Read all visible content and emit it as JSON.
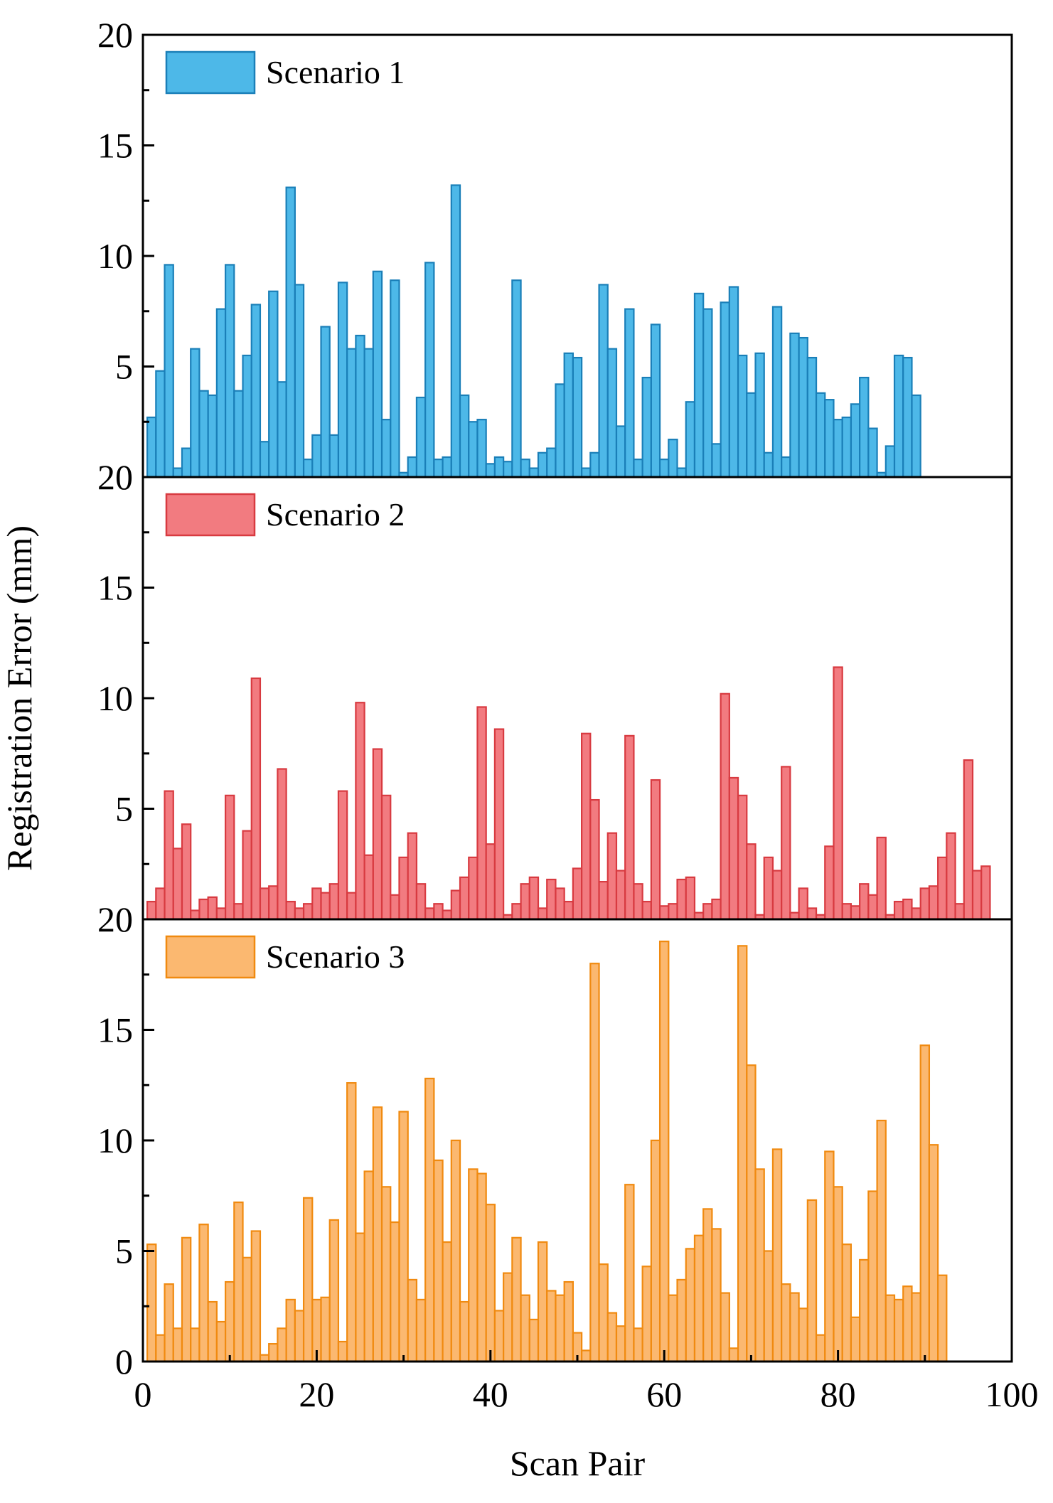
{
  "chart_data": {
    "type": "bar",
    "xlabel": "Scan Pair",
    "ylabel": "Registration Error (mm)",
    "xlim": [
      0,
      100
    ],
    "ylim": [
      0,
      20
    ],
    "x_ticks": [
      "0",
      "20",
      "40",
      "60",
      "80",
      "100"
    ],
    "y_ticks": [
      "0",
      "5",
      "10",
      "15",
      "20"
    ],
    "panel_top_tick": "20",
    "legend_position": "top-left",
    "series": [
      {
        "name": "Scenario 1",
        "fill": "#4db8e8",
        "stroke": "#1a7fb8",
        "values": [
          2.7,
          4.8,
          9.6,
          0.4,
          1.3,
          5.8,
          3.9,
          3.7,
          7.6,
          9.6,
          3.9,
          5.5,
          7.8,
          1.6,
          8.4,
          4.3,
          13.1,
          8.7,
          0.8,
          1.9,
          6.8,
          1.9,
          8.8,
          5.8,
          6.4,
          5.8,
          9.3,
          2.6,
          8.9,
          0.2,
          0.9,
          3.6,
          9.7,
          0.8,
          0.9,
          13.2,
          3.7,
          2.5,
          2.6,
          0.6,
          0.9,
          0.7,
          8.9,
          0.8,
          0.4,
          1.1,
          1.3,
          4.2,
          5.6,
          5.4,
          0.4,
          1.1,
          8.7,
          5.8,
          2.3,
          7.6,
          0.8,
          4.5,
          6.9,
          0.8,
          1.7,
          0.4,
          3.4,
          8.3,
          7.6,
          1.5,
          7.9,
          8.6,
          5.5,
          3.8,
          5.6,
          1.1,
          7.7,
          0.9,
          6.5,
          6.3,
          5.4,
          3.8,
          3.5,
          2.6,
          2.7,
          3.3,
          4.5,
          2.2,
          0.2,
          1.4,
          5.5,
          5.4,
          3.7
        ]
      },
      {
        "name": "Scenario 2",
        "fill": "#f27b80",
        "stroke": "#d83a40",
        "values": [
          0.8,
          1.4,
          5.8,
          3.2,
          4.3,
          0.4,
          0.9,
          1.0,
          0.5,
          5.6,
          0.7,
          4.0,
          10.9,
          1.4,
          1.5,
          6.8,
          0.8,
          0.5,
          0.7,
          1.4,
          1.2,
          1.6,
          5.8,
          1.2,
          9.8,
          2.9,
          7.7,
          5.6,
          1.1,
          2.8,
          3.9,
          1.6,
          0.5,
          0.7,
          0.4,
          1.3,
          1.9,
          2.8,
          9.6,
          3.4,
          8.6,
          0.2,
          0.7,
          1.6,
          1.9,
          0.5,
          1.8,
          1.4,
          0.8,
          2.3,
          8.4,
          5.4,
          1.7,
          3.9,
          2.2,
          8.3,
          1.6,
          0.8,
          6.3,
          0.6,
          0.7,
          1.8,
          1.9,
          0.3,
          0.7,
          0.9,
          10.2,
          6.4,
          5.6,
          3.4,
          0.2,
          2.8,
          2.2,
          6.9,
          0.3,
          1.4,
          0.5,
          0.2,
          3.3,
          11.4,
          0.7,
          0.6,
          1.6,
          1.1,
          3.7,
          0.2,
          0.8,
          0.9,
          0.5,
          1.4,
          1.5,
          2.8,
          3.9,
          0.7,
          7.2,
          2.2,
          2.4
        ]
      },
      {
        "name": "Scenario 3",
        "fill": "#fbb870",
        "stroke": "#f08a10",
        "values": [
          5.3,
          1.2,
          3.5,
          1.5,
          5.6,
          1.5,
          6.2,
          2.7,
          1.8,
          3.6,
          7.2,
          4.7,
          5.9,
          0.3,
          0.8,
          1.5,
          2.8,
          2.3,
          7.4,
          2.8,
          2.9,
          6.4,
          0.9,
          12.6,
          5.8,
          8.6,
          11.5,
          7.9,
          6.3,
          11.3,
          3.7,
          2.8,
          12.8,
          9.1,
          5.4,
          10.0,
          2.7,
          8.7,
          8.5,
          7.1,
          2.3,
          4.0,
          5.6,
          3.0,
          1.9,
          5.4,
          3.2,
          3.0,
          3.6,
          1.3,
          0.5,
          18.0,
          4.4,
          2.2,
          1.6,
          8.0,
          1.5,
          4.3,
          10.0,
          19.0,
          3.0,
          3.7,
          5.1,
          5.7,
          6.9,
          6.0,
          3.1,
          0.6,
          18.8,
          13.4,
          8.7,
          5.0,
          9.6,
          3.5,
          3.1,
          2.4,
          7.3,
          1.2,
          9.5,
          7.9,
          5.3,
          2.0,
          4.6,
          7.7,
          10.9,
          3.0,
          2.8,
          3.4,
          3.1,
          14.3,
          9.8,
          3.9
        ]
      }
    ]
  }
}
